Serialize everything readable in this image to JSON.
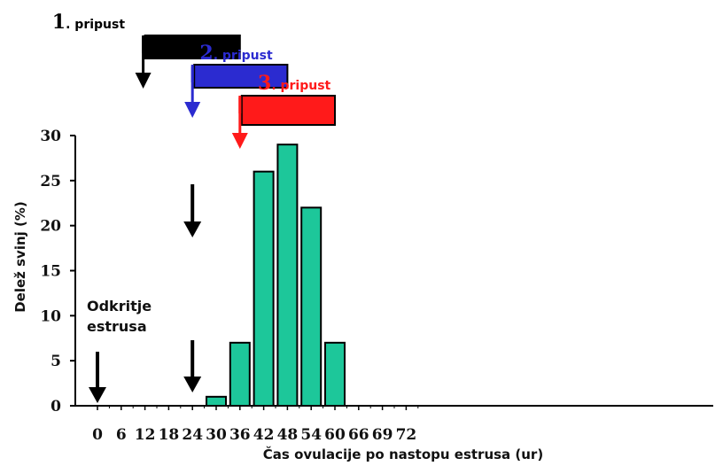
{
  "chart_data": {
    "type": "bar",
    "title": "",
    "xlabel": "Čas ovulacije po nastopu estrusa (ur)",
    "ylabel": "Delež svinj (%)",
    "ylim": [
      0,
      30
    ],
    "yticks": [
      "0",
      "5",
      "10",
      "15",
      "20",
      "25",
      "30"
    ],
    "categories": [
      "0",
      "6",
      "12",
      "18",
      "24",
      "30",
      "36",
      "42",
      "48",
      "54",
      "60",
      "66",
      "69",
      "72"
    ],
    "values": [
      0,
      0,
      0,
      0,
      0,
      1,
      7,
      26,
      29,
      22,
      7,
      0,
      0,
      0
    ],
    "bar_color": "#1dc79a",
    "grid": false,
    "annotations": {
      "estrus_detection": {
        "line1": "Odkritje",
        "line2": "estrusa",
        "at_category": "0"
      },
      "arrow_at_category": "24"
    },
    "inseminations": [
      {
        "number": "1",
        "label": ". pripust",
        "color": "#000000",
        "start_category": "12",
        "end_category": "36"
      },
      {
        "number": "2",
        "label": ". pripust",
        "color": "#2b2bd0",
        "start_category": "24",
        "end_category": "48"
      },
      {
        "number": "3",
        "label": ". pripust",
        "color": "#ff1a1a",
        "start_category": "36",
        "end_category": "60"
      }
    ]
  }
}
